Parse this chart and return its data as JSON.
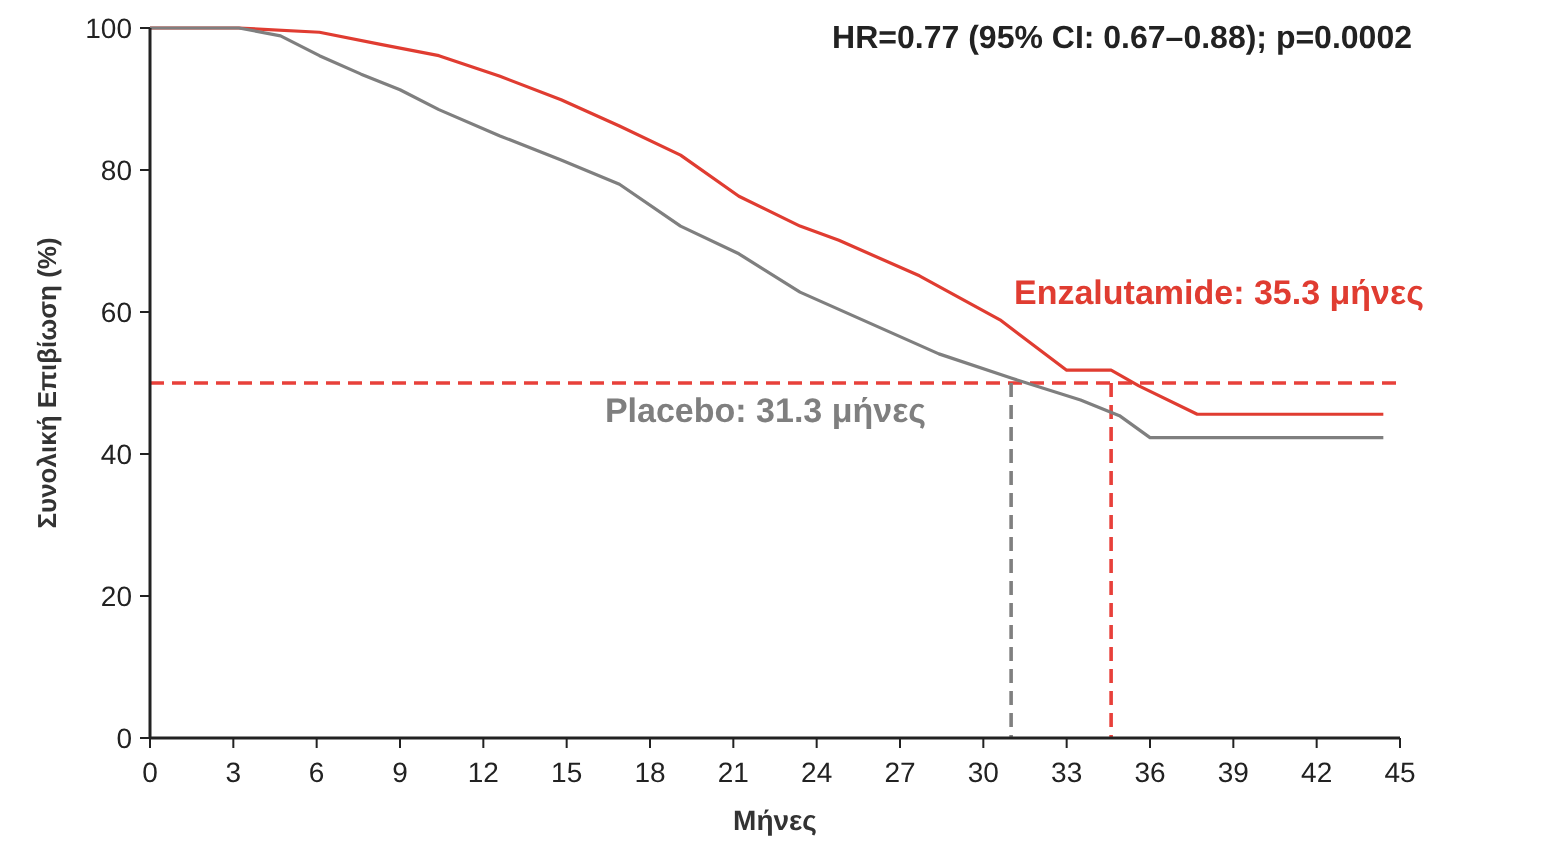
{
  "chart_data": {
    "type": "line",
    "xlabel": "Μήνες",
    "ylabel": "Συνολική Επιβίωση (%)",
    "annotations": [
      "HR=0.77 (95% CI: 0.67–0.88); p=0.0002"
    ],
    "xlim": [
      0,
      45
    ],
    "xticks": [
      0,
      3,
      6,
      9,
      12,
      15,
      18,
      21,
      24,
      27,
      30,
      33,
      36,
      39,
      42,
      45
    ],
    "ylim": [
      0,
      100
    ],
    "yticks": [
      0,
      20,
      40,
      60,
      80,
      100
    ],
    "grid": false,
    "series": [
      {
        "name": "Enzalutamide: 35.3 μήνες",
        "color": "#e03c31",
        "x": [
          0,
          3.2,
          6.1,
          8.3,
          10.4,
          12.6,
          14.8,
          16.9,
          19.1,
          21.2,
          23.4,
          24.8,
          27.7,
          30.6,
          33.0,
          34.6,
          35.6,
          37.7,
          44.4
        ],
        "values": [
          100,
          100,
          99.4,
          97.7,
          96.1,
          93.2,
          89.9,
          86.2,
          82.1,
          76.3,
          72.1,
          70.1,
          65.1,
          58.9,
          51.8,
          51.8,
          49.6,
          45.6,
          45.6
        ]
      },
      {
        "name": "Placebo: 31.3 μήνες",
        "color": "#7f7f7f",
        "x": [
          0,
          3.2,
          4.7,
          6.1,
          7.6,
          9.0,
          10.4,
          12.6,
          14.8,
          16.9,
          19.1,
          21.2,
          23.4,
          28.4,
          31.0,
          33.5,
          34.9,
          36.0,
          44.4
        ],
        "values": [
          100,
          100,
          98.9,
          96.1,
          93.5,
          91.3,
          88.5,
          84.8,
          81.4,
          78.0,
          72.1,
          68.2,
          62.8,
          54.1,
          50.7,
          47.6,
          45.4,
          42.3,
          42.3
        ]
      }
    ],
    "ref_lines": [
      {
        "axis": "y",
        "value": 50,
        "color": "#e8403a",
        "line_style": "dashed"
      },
      {
        "axis": "x",
        "value": 31.0,
        "color": "#808080",
        "line_style": "dashed"
      },
      {
        "axis": "x",
        "value": 34.6,
        "color": "#e8403a",
        "line_style": "dashed"
      }
    ]
  }
}
